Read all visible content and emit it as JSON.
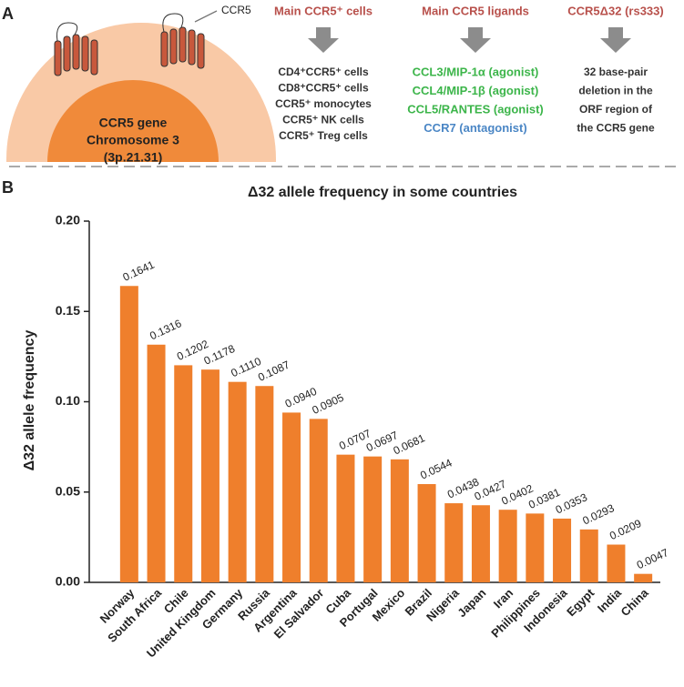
{
  "panel_labels": [
    "A",
    "B"
  ],
  "panel_a": {
    "receptor_label": "CCR5",
    "nucleus_lines": [
      "CCR5 gene",
      "Chromosome 3",
      "(3p.21.31)"
    ],
    "columns": [
      {
        "heading": "Main CCR5⁺ cells",
        "lines": [
          "CD4⁺CCR5⁺ cells",
          "CD8⁺CCR5⁺ cells",
          "CCR5⁺ monocytes",
          "CCR5⁺ NK cells",
          "CCR5⁺ Treg cells"
        ]
      },
      {
        "heading": "Main CCR5 ligands",
        "lines": [
          "CCL3/MIP-1α (agonist)",
          "CCL4/MIP-1β (agonist)",
          "CCL5/RANTES (agonist)",
          "CCR7 (antagonist)"
        ]
      },
      {
        "heading": "CCR5Δ32 (rs333)",
        "lines": [
          "32 base-pair",
          "deletion in the",
          "ORF region of",
          "the CCR5 gene"
        ]
      }
    ]
  },
  "chart_data": {
    "type": "bar",
    "title": "Δ32 allele frequency in some countries",
    "y_label": "Δ32 allele frequency",
    "categories": [
      "Norway",
      "South Africa",
      "Chile",
      "United Kingdom",
      "Germany",
      "Russia",
      "Argentina",
      "El Salvador",
      "Cuba",
      "Portugal",
      "Mexico",
      "Brazil",
      "Nigeria",
      "Japan",
      "Iran",
      "Philippines",
      "Indonesia",
      "Egypt",
      "India",
      "China"
    ],
    "values": [
      0.1641,
      0.1316,
      0.1202,
      0.1178,
      0.111,
      0.1087,
      0.094,
      0.0905,
      0.0707,
      0.0697,
      0.0681,
      0.0544,
      0.0438,
      0.0427,
      0.0402,
      0.0381,
      0.0353,
      0.0293,
      0.0209,
      0.0047
    ],
    "value_labels": [
      "0.1641",
      "0.1316",
      "0.1202",
      "0.1178",
      "0.1110",
      "0.1087",
      "0.0940",
      "0.0905",
      "0.0707",
      "0.0697",
      "0.0681",
      "0.0544",
      "0.0438",
      "0.0427",
      "0.0402",
      "0.0381",
      "0.0353",
      "0.0293",
      "0.0209",
      "0.0047"
    ],
    "color": "#ef7f2c",
    "ylim": [
      0,
      0.2
    ],
    "yticks": [
      {
        "value": 0,
        "label": "0.00"
      },
      {
        "value": 0.05,
        "label": "0.05"
      },
      {
        "value": 0.1,
        "label": "0.10"
      },
      {
        "value": 0.15,
        "label": "0.15"
      },
      {
        "value": 0.2,
        "label": "0.20"
      }
    ]
  }
}
